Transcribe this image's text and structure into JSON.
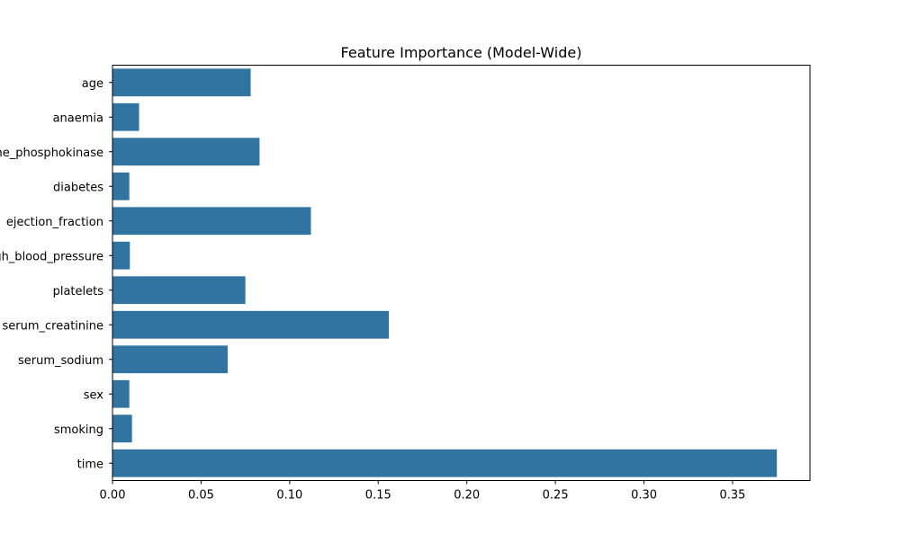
{
  "chart_data": {
    "type": "bar",
    "orientation": "horizontal",
    "title": "Feature Importance (Model-Wide)",
    "xlabel": "",
    "ylabel": "",
    "categories": [
      "age",
      "anaemia",
      "creatinine_phosphokinase",
      "diabetes",
      "ejection_fraction",
      "high_blood_pressure",
      "platelets",
      "serum_creatinine",
      "serum_sodium",
      "sex",
      "smoking",
      "time"
    ],
    "values": [
      0.078,
      0.015,
      0.083,
      0.0095,
      0.112,
      0.0098,
      0.075,
      0.156,
      0.065,
      0.0095,
      0.011,
      0.375
    ],
    "xlim": [
      0.0,
      0.3937
    ],
    "xticks": [
      "0.00",
      "0.05",
      "0.10",
      "0.15",
      "0.20",
      "0.25",
      "0.30",
      "0.35"
    ],
    "grid": false,
    "legend": "none",
    "colors": {
      "bar": "#3274a1",
      "axis": "#000000",
      "background": "#ffffff"
    }
  }
}
